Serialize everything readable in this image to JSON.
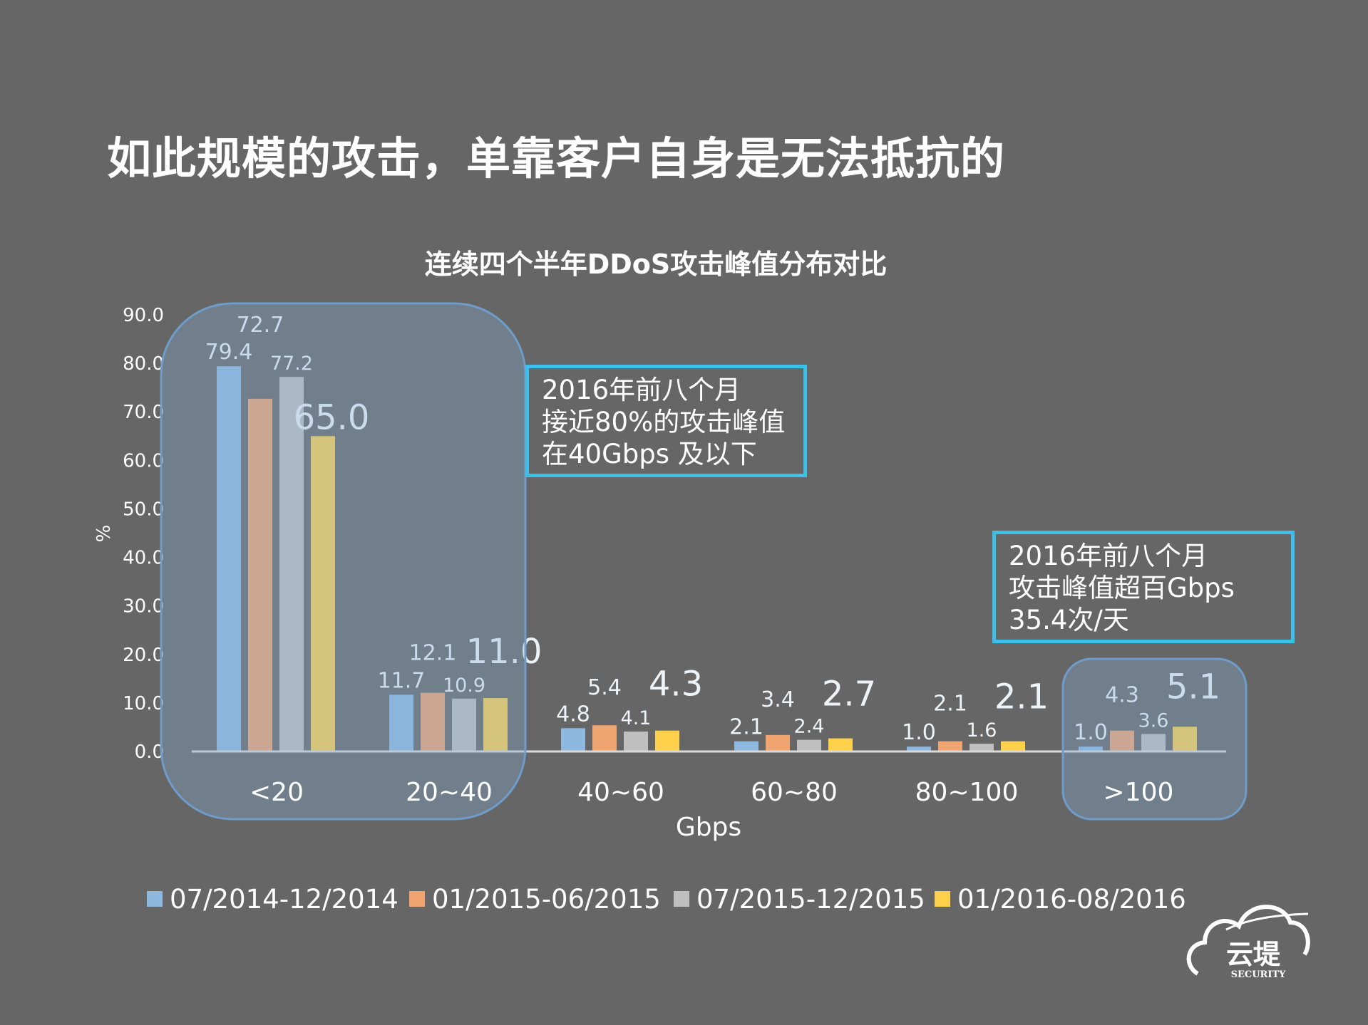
{
  "slide_title": "如此规模的攻击，单靠客户自身是无法抵抗的",
  "callouts": [
    {
      "lines": [
        "2016年前八个月",
        "接近80%的攻击峰值",
        "在40Gbps 及以下"
      ]
    },
    {
      "lines": [
        "2016年前八个月",
        "攻击峰值超百Gbps",
        "35.4次/天"
      ]
    }
  ],
  "logo": {
    "text": "云堤",
    "subtext": "SECURITY"
  },
  "chart_data": {
    "type": "bar",
    "title": "连续四个半年DDoS攻击峰值分布对比",
    "xlabel": "Gbps",
    "ylabel": "%",
    "ylim": [
      0,
      90
    ],
    "yticks": [
      "0.0",
      "10.0",
      "20.0",
      "30.0",
      "40.0",
      "50.0",
      "60.0",
      "70.0",
      "80.0",
      "90.0"
    ],
    "grid": false,
    "legend_position": "bottom",
    "categories": [
      "<20",
      "20~40",
      "40~60",
      "60~80",
      "80~100",
      ">100"
    ],
    "series": [
      {
        "name": "07/2014-12/2014",
        "color": "#8db8e0",
        "values": [
          79.4,
          11.7,
          4.8,
          2.1,
          1.0,
          1.0
        ],
        "labels": [
          "79.4",
          "11.7",
          "4.8",
          "2.1",
          "1.0",
          "1.0"
        ]
      },
      {
        "name": "01/2015-06/2015",
        "color": "#f0a470",
        "values": [
          72.7,
          12.1,
          5.4,
          3.4,
          2.1,
          4.3
        ],
        "labels": [
          "72.7",
          "12.1",
          "5.4",
          "3.4",
          "2.1",
          "4.3"
        ]
      },
      {
        "name": "07/2015-12/2015",
        "color": "#bfbfbf",
        "values": [
          77.2,
          10.9,
          4.1,
          2.4,
          1.6,
          3.6
        ],
        "labels": [
          "77.2",
          "10.9",
          "4.1",
          "2.4",
          "1.6",
          "3.6"
        ]
      },
      {
        "name": "01/2016-08/2016",
        "color": "#ffd04a",
        "values": [
          65.0,
          11.0,
          4.3,
          2.7,
          2.1,
          5.1
        ],
        "labels": [
          "65.0",
          "11.0",
          "4.3",
          "2.7",
          "2.1",
          "5.1"
        ]
      }
    ],
    "highlight_color": "#6f9cc8",
    "callout_color": "#3cc0ea"
  }
}
